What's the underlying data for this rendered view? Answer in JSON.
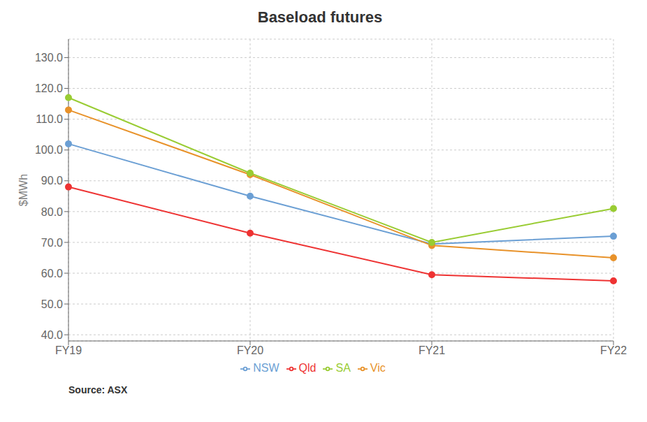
{
  "chart_data": {
    "type": "line",
    "title": "Baseload futures",
    "y_label": "$MWh",
    "annotations": [
      "Source: ASX"
    ],
    "categories": [
      "FY19",
      "FY20",
      "FY21",
      "FY22"
    ],
    "series": [
      {
        "name": "NSW",
        "color": "#6b9fd4",
        "marker": "circle",
        "values": [
          102.0,
          85.0,
          69.5,
          72.0
        ]
      },
      {
        "name": "Vic",
        "color": "#e8922a",
        "marker": "circle",
        "values": [
          113.0,
          92.0,
          69.0,
          65.0
        ]
      },
      {
        "name": "Qld",
        "color": "#ee3333",
        "marker": "circle",
        "values": [
          88.0,
          73.0,
          59.5,
          57.5
        ]
      },
      {
        "name": "SA",
        "color": "#99cc33",
        "marker": "circle",
        "values": [
          117.0,
          92.5,
          70.0,
          81.0
        ]
      }
    ],
    "ylim": [
      38.0,
      136.0
    ],
    "yticks": [
      {
        "value": 40,
        "label": "40.0"
      },
      {
        "value": 50,
        "label": "50.0"
      },
      {
        "value": 60,
        "label": "60.0"
      },
      {
        "value": 70,
        "label": "70.0"
      },
      {
        "value": 80,
        "label": "80.0"
      },
      {
        "value": 90,
        "label": "90.0"
      },
      {
        "value": 100,
        "label": "100.0"
      },
      {
        "value": 110,
        "label": "110.0"
      },
      {
        "value": 120,
        "label": "120.0"
      },
      {
        "value": 130,
        "label": "130.0"
      }
    ],
    "grid": true,
    "legend": "bottom"
  }
}
